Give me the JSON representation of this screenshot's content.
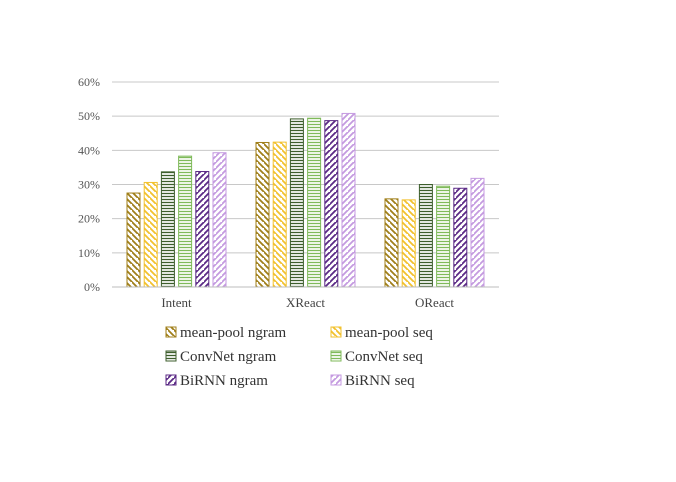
{
  "chart_data": {
    "type": "bar",
    "title": "",
    "xlabel": "",
    "ylabel": "",
    "ylim": [
      0,
      60
    ],
    "yticks": [
      0,
      10,
      20,
      30,
      40,
      50,
      60
    ],
    "ytick_labels": [
      "0%",
      "10%",
      "20%",
      "30%",
      "40%",
      "50%",
      "60%"
    ],
    "grid": true,
    "legend_position": "bottom",
    "categories": [
      "Intent",
      "XReact",
      "OReact"
    ],
    "series": [
      {
        "name": "mean-pool ngram",
        "values": [
          27.5,
          42.3,
          25.8
        ],
        "color": "#a07f1a",
        "pattern": "diag-left"
      },
      {
        "name": "mean-pool seq",
        "values": [
          30.6,
          42.4,
          25.5
        ],
        "color": "#f2c12e",
        "pattern": "diag-left"
      },
      {
        "name": "ConvNet ngram",
        "values": [
          33.7,
          49.2,
          30.0
        ],
        "color": "#3d5e2c",
        "pattern": "horizontal"
      },
      {
        "name": "ConvNet seq",
        "values": [
          38.3,
          49.4,
          29.5
        ],
        "color": "#7fba5a",
        "pattern": "horizontal"
      },
      {
        "name": "BiRNN ngram",
        "values": [
          33.8,
          48.7,
          28.9
        ],
        "color": "#5b2a86",
        "pattern": "diag-right"
      },
      {
        "name": "BiRNN seq",
        "values": [
          39.3,
          50.8,
          31.8
        ],
        "color": "#c49ae0",
        "pattern": "diag-right"
      }
    ]
  }
}
